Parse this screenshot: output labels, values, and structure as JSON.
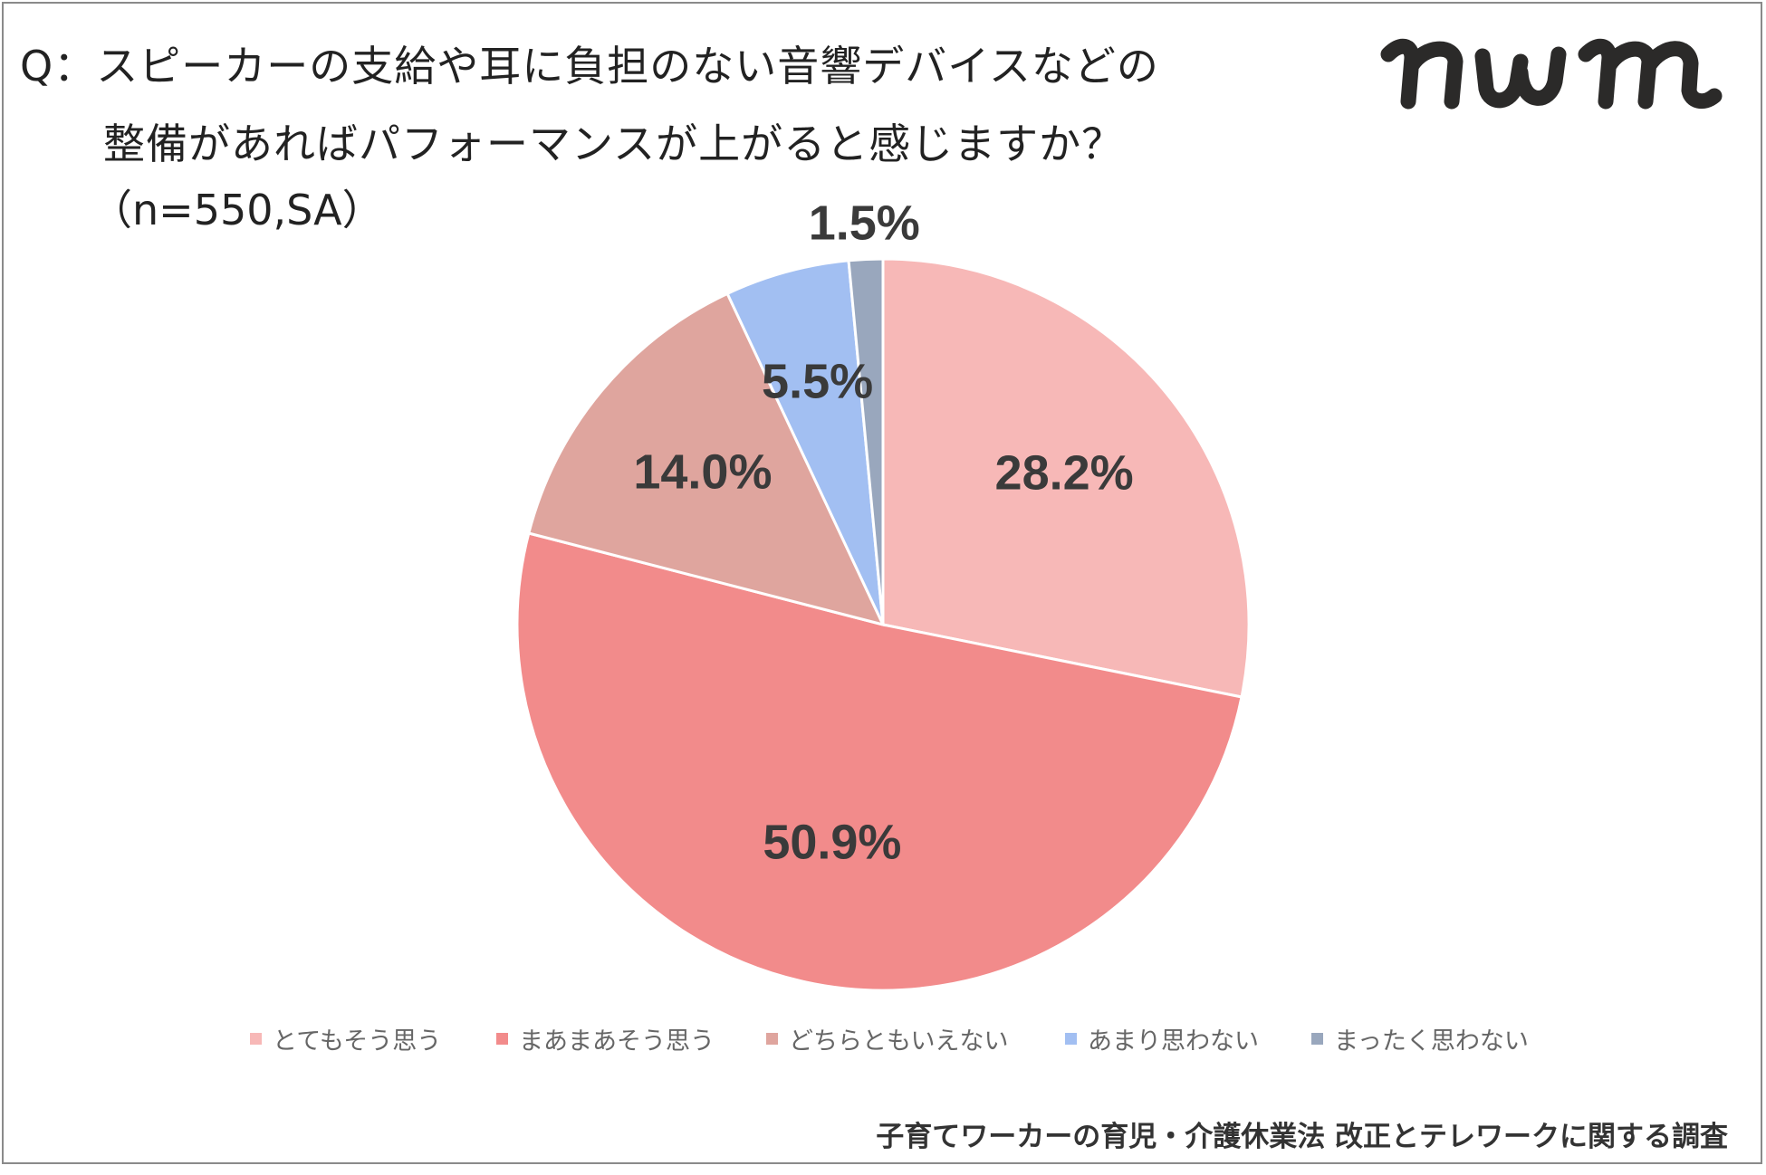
{
  "header": {
    "title_line1": "Q：スピーカーの支給や耳に負担のない音響デバイスなどの",
    "title_line2": "整備があればパフォーマンスが上がると感じますか？",
    "sample_note": "（n=550,SA）",
    "logo_text": "nwm"
  },
  "footer": {
    "source": "子育てワーカーの育児・介護休業法 改正とテレワークに関する調査"
  },
  "chart_data": {
    "type": "pie",
    "title": "スピーカーの支給や耳に負担のない音響デバイスなどの整備があればパフォーマンスが上がると感じますか？",
    "start_angle": "12 o'clock",
    "direction": "clockwise",
    "legend_position": "bottom",
    "slices": [
      {
        "label": "とてもそう思う",
        "value": 28.2,
        "display": "28.2%",
        "color": "#F7B8B7"
      },
      {
        "label": "まあまあそう思う",
        "value": 50.9,
        "display": "50.9%",
        "color": "#F28B8B"
      },
      {
        "label": "どちらともいえない",
        "value": 14.0,
        "display": "14.0%",
        "color": "#DFA59E"
      },
      {
        "label": "あまり思わない",
        "value": 5.5,
        "display": "5.5%",
        "color": "#A2BFF2"
      },
      {
        "label": "まったく思わない",
        "value": 1.5,
        "display": "1.5%",
        "color": "#99A7BD"
      }
    ]
  }
}
